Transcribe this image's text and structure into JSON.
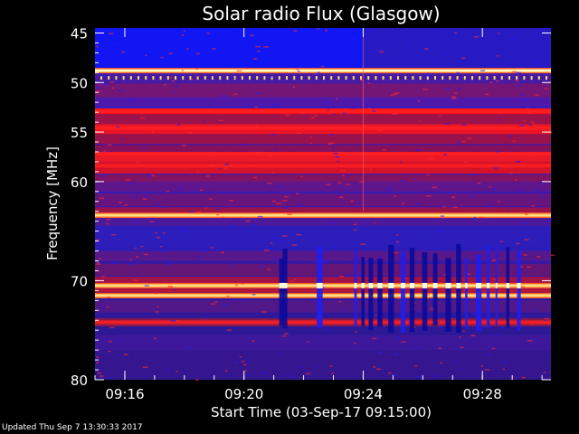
{
  "chart_data": {
    "type": "heatmap",
    "title": "Solar radio Flux (Glasgow)",
    "xlabel": "Start Time (03-Sep-17 09:15:00)",
    "ylabel": "Frequency [MHz]",
    "x_ticks": [
      "09:16",
      "09:20",
      "09:24",
      "09:28"
    ],
    "x_tick_minutes": [
      1,
      5,
      9,
      13
    ],
    "xlim_minutes": [
      0,
      15.3
    ],
    "y_ticks": [
      45,
      50,
      55,
      60,
      70,
      80
    ],
    "ylim": [
      44.5,
      80
    ],
    "y_direction": "downward",
    "colorscale": [
      "#000040",
      "#0000c8",
      "#ff0000",
      "#ffff80",
      "#ffffff"
    ],
    "bright_bands_mhz": [
      48.8,
      63.4,
      70.5,
      71.5
    ],
    "strong_red_bands_mhz": [
      52.9,
      54.6,
      57.2,
      58.4,
      74.2
    ],
    "event_start_time": "09:24"
  },
  "footer": "Updated Thu Sep  7 13:30:33 2017"
}
